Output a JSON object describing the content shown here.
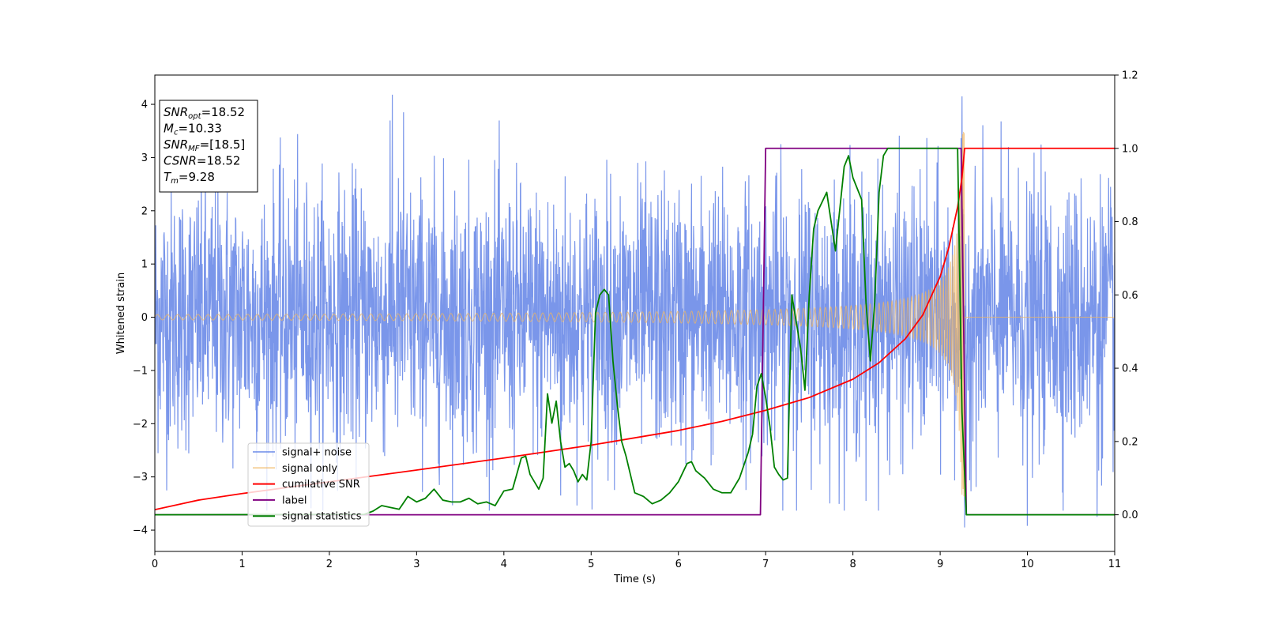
{
  "chart_data": {
    "type": "line",
    "title": "",
    "xlabel": "Time (s)",
    "ylabel": "Whitened strain",
    "xlim": [
      0,
      11
    ],
    "ylim": [
      -4.4,
      4.55
    ],
    "y2lim": [
      -0.1,
      1.2
    ],
    "x_ticks": [
      0,
      1,
      2,
      3,
      4,
      5,
      6,
      7,
      8,
      9,
      10,
      11
    ],
    "y_ticks": [
      -4,
      -3,
      -2,
      -1,
      0,
      1,
      2,
      3,
      4
    ],
    "y_tick_labels": [
      "−4",
      "−3",
      "−2",
      "−1",
      "0",
      "1",
      "2",
      "3",
      "4"
    ],
    "y2_ticks": [
      0.0,
      0.2,
      0.4,
      0.6,
      0.8,
      1.0,
      1.2
    ],
    "y2_tick_labels": [
      "0.0",
      "0.2",
      "0.4",
      "0.6",
      "0.8",
      "1.0",
      "1.2"
    ],
    "grid": false,
    "legend_position": "lower-left",
    "series": [
      {
        "name": "signal+ noise",
        "axis": "left",
        "color": "#6b8be8",
        "kind": "noise",
        "noise_envelope": {
          "x": [
            0,
            11
          ],
          "typical_range": [
            -2.0,
            2.0
          ],
          "peak_range": [
            -3.95,
            4.2
          ]
        },
        "outliers": [
          {
            "x": 2.72,
            "y": 4.18
          },
          {
            "x": 9.25,
            "y": 4.15
          },
          {
            "x": 9.28,
            "y": -3.95
          },
          {
            "x": 10.0,
            "y": -3.92
          },
          {
            "x": 8.15,
            "y": -3.45
          },
          {
            "x": 10.8,
            "y": -3.75
          },
          {
            "x": 2.85,
            "y": 3.85
          },
          {
            "x": 4.65,
            "y": -3.35
          }
        ]
      },
      {
        "name": "signal only",
        "axis": "left",
        "color": "#f0b560",
        "kind": "chirp",
        "start_amplitude": 0.05,
        "peak_amplitude": 3.5,
        "merger_time": 9.28
      },
      {
        "name": "cumilative SNR",
        "axis": "right",
        "color": "#ff0000",
        "x": [
          0,
          0.5,
          1,
          2,
          3,
          4,
          5,
          6,
          6.5,
          7,
          7.5,
          8,
          8.3,
          8.6,
          8.8,
          9.0,
          9.1,
          9.2,
          9.25,
          9.28,
          11
        ],
        "y": [
          0.014,
          0.04,
          0.058,
          0.09,
          0.122,
          0.155,
          0.19,
          0.23,
          0.255,
          0.285,
          0.32,
          0.37,
          0.415,
          0.48,
          0.545,
          0.65,
          0.73,
          0.84,
          0.92,
          1.0,
          1.0
        ]
      },
      {
        "name": "label",
        "axis": "right",
        "color": "#800080",
        "x": [
          0,
          6.94,
          7.0,
          9.24,
          9.3,
          11
        ],
        "y": [
          0.0,
          0.0,
          1.0,
          1.0,
          0.0,
          0.0
        ]
      },
      {
        "name": "signal statistics",
        "axis": "right",
        "color": "#008000",
        "x": [
          0,
          2.4,
          2.5,
          2.6,
          2.7,
          2.8,
          2.9,
          3.0,
          3.1,
          3.2,
          3.3,
          3.4,
          3.5,
          3.6,
          3.7,
          3.8,
          3.9,
          4.0,
          4.1,
          4.2,
          4.25,
          4.3,
          4.4,
          4.45,
          4.5,
          4.55,
          4.6,
          4.65,
          4.7,
          4.75,
          4.8,
          4.85,
          4.9,
          4.95,
          5.0,
          5.05,
          5.1,
          5.15,
          5.2,
          5.25,
          5.3,
          5.35,
          5.4,
          5.5,
          5.6,
          5.7,
          5.8,
          5.9,
          6.0,
          6.1,
          6.15,
          6.2,
          6.3,
          6.4,
          6.5,
          6.6,
          6.7,
          6.8,
          6.85,
          6.9,
          6.95,
          7.0,
          7.05,
          7.1,
          7.15,
          7.2,
          7.25,
          7.3,
          7.4,
          7.45,
          7.5,
          7.55,
          7.6,
          7.7,
          7.8,
          7.9,
          7.95,
          8.0,
          8.1,
          8.15,
          8.2,
          8.25,
          8.3,
          8.35,
          8.4,
          8.5,
          8.6,
          8.8,
          9.0,
          9.2,
          9.25,
          9.3,
          9.35,
          9.4,
          11
        ],
        "y": [
          0.0,
          0.001,
          0.01,
          0.025,
          0.02,
          0.015,
          0.05,
          0.035,
          0.045,
          0.07,
          0.04,
          0.035,
          0.035,
          0.045,
          0.03,
          0.035,
          0.025,
          0.065,
          0.07,
          0.155,
          0.16,
          0.11,
          0.07,
          0.1,
          0.33,
          0.25,
          0.31,
          0.2,
          0.13,
          0.14,
          0.12,
          0.09,
          0.11,
          0.095,
          0.2,
          0.55,
          0.6,
          0.615,
          0.6,
          0.42,
          0.3,
          0.2,
          0.16,
          0.06,
          0.05,
          0.03,
          0.04,
          0.06,
          0.09,
          0.14,
          0.145,
          0.12,
          0.1,
          0.07,
          0.06,
          0.06,
          0.1,
          0.17,
          0.22,
          0.35,
          0.385,
          0.32,
          0.24,
          0.13,
          0.11,
          0.095,
          0.1,
          0.6,
          0.455,
          0.34,
          0.6,
          0.78,
          0.83,
          0.88,
          0.72,
          0.95,
          0.98,
          0.92,
          0.86,
          0.58,
          0.42,
          0.58,
          0.88,
          0.98,
          1.0,
          1.0,
          1.0,
          1.0,
          1.0,
          1.0,
          0.28,
          0.0,
          0.0,
          0.0,
          0.0
        ]
      }
    ],
    "info_box": {
      "lines": [
        {
          "main": "SNR",
          "sub": "opt",
          "value": "=18.52"
        },
        {
          "main": "M",
          "sub": "c",
          "value": "=10.33"
        },
        {
          "main": "SNR",
          "sub": "MF",
          "value": "=[18.5]"
        },
        {
          "main": "CSNR",
          "sub": "",
          "value": "=18.52"
        },
        {
          "main": "T",
          "sub": "m",
          "value": "=9.28"
        }
      ]
    }
  }
}
